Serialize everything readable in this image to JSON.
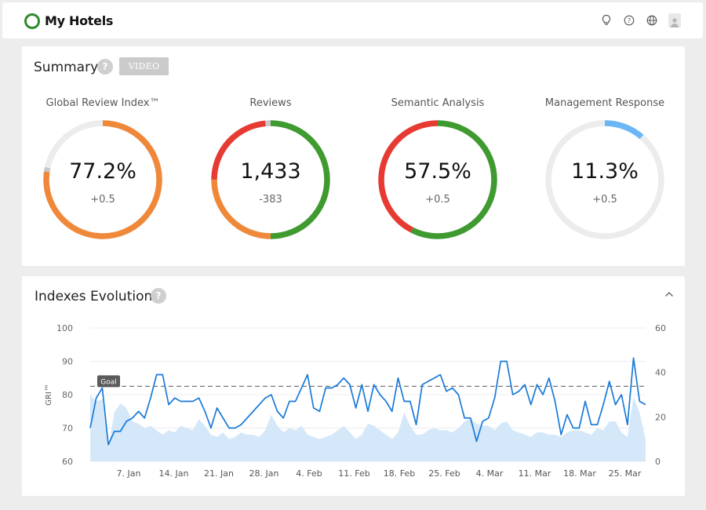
{
  "app": {
    "title": "My Hotels"
  },
  "top_icons": [
    "lightbulb-icon",
    "help-icon",
    "globe-icon",
    "user-icon"
  ],
  "summary": {
    "title": "Summary",
    "help": "?",
    "video_label": "VIDEO",
    "gauges": [
      {
        "label": "Global Review Index™",
        "value": "77.2%",
        "delta": "+0.5",
        "segments": [
          {
            "color": "#f0883a",
            "fraction": 0.772
          },
          {
            "color": "#c8c8c8",
            "fraction": 0.012
          }
        ]
      },
      {
        "label": "Reviews",
        "value": "1,433",
        "delta": "-383",
        "segments": [
          {
            "color": "#3f9a2f",
            "fraction": 0.5
          },
          {
            "color": "#f0883a",
            "fraction": 0.25
          },
          {
            "color": "#e63a32",
            "fraction": 0.235
          },
          {
            "color": "#c8c8c8",
            "fraction": 0.015
          }
        ]
      },
      {
        "label": "Semantic Analysis",
        "value": "57.5%",
        "delta": "+0.5",
        "segments": [
          {
            "color": "#3f9a2f",
            "fraction": 0.575
          },
          {
            "color": "#e63a32",
            "fraction": 0.425
          }
        ]
      },
      {
        "label": "Management Response",
        "value": "11.3%",
        "delta": "+0.5",
        "segments": [
          {
            "color": "#6cb6f5",
            "fraction": 0.113
          }
        ]
      }
    ]
  },
  "colors": {
    "accent_green": "#2e8b2e",
    "line_blue": "#1a7ad8",
    "area_blue": "#d4e8fa",
    "track": "#ececec"
  },
  "evolution": {
    "title": "Indexes Evolution",
    "help": "?"
  },
  "chart_data": {
    "type": "line",
    "ylabel": "GRI™",
    "ylim": [
      60,
      100
    ],
    "y_ticks": [
      "100",
      "90",
      "80",
      "70",
      "60"
    ],
    "y2lim": [
      0,
      60
    ],
    "y2_ticks": [
      "60",
      "40",
      "20",
      "0"
    ],
    "x_ticks": [
      "7. Jan",
      "14. Jan",
      "21. Jan",
      "28. Jan",
      "4. Feb",
      "11. Feb",
      "18. Feb",
      "25. Feb",
      "4. Mar",
      "11. Mar",
      "18. Mar",
      "25. Mar"
    ],
    "goal": {
      "label": "Goal",
      "value": 82.5
    },
    "series": [
      {
        "axis": "left",
        "style": "line",
        "values": [
          70,
          79,
          82,
          65,
          69,
          69,
          72,
          73,
          75,
          73,
          79,
          86,
          86,
          77,
          79,
          78,
          78,
          78,
          79,
          75,
          70,
          76,
          73,
          70,
          70,
          71,
          73,
          75,
          77,
          79,
          80,
          75,
          73,
          78,
          78,
          82,
          86,
          76,
          75,
          82,
          82,
          83,
          85,
          83,
          76,
          83,
          75,
          83,
          80,
          78,
          75,
          85,
          78,
          78,
          71,
          83,
          84,
          85,
          86,
          81,
          82,
          80,
          73,
          73,
          66,
          72,
          73,
          79,
          90,
          90,
          80,
          81,
          83,
          77,
          83,
          80,
          85,
          78,
          68,
          74,
          70,
          70,
          78,
          71,
          71,
          77,
          84,
          77,
          80,
          71,
          91,
          78,
          77
        ]
      },
      {
        "axis": "right",
        "style": "area",
        "values": [
          30,
          27,
          28,
          6,
          22,
          26,
          24,
          18,
          17,
          15,
          16,
          14,
          12,
          14,
          13,
          16,
          15,
          14,
          19,
          16,
          12,
          11,
          13,
          10,
          11,
          13,
          12,
          12,
          11,
          14,
          21,
          16,
          13,
          15,
          14,
          16,
          12,
          11,
          10,
          11,
          12,
          14,
          16,
          13,
          10,
          12,
          17,
          16,
          14,
          12,
          10,
          13,
          22,
          16,
          12,
          12,
          14,
          15,
          14,
          14,
          13,
          15,
          18,
          19,
          17,
          16,
          16,
          14,
          17,
          18,
          14,
          13,
          12,
          11,
          13,
          13,
          12,
          12,
          11,
          13,
          14,
          14,
          13,
          12,
          15,
          14,
          18,
          18,
          13,
          11,
          29,
          22,
          10,
          0
        ]
      }
    ]
  }
}
